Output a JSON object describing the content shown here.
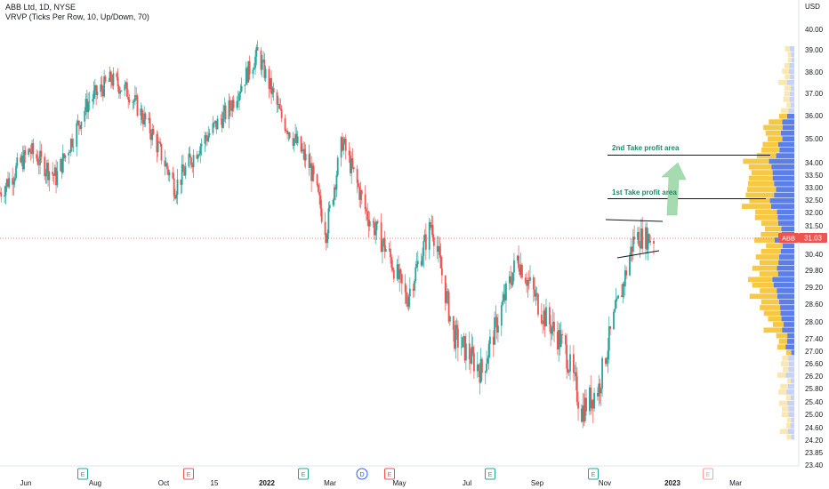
{
  "header": {
    "symbol_line": "ABB Ltd, 1D, NYSE",
    "indicator_line": "VRVP (Ticks Per Row, 10, Up/Down, 70)",
    "currency": "USD"
  },
  "price_scale": {
    "ticks": [
      "40.00",
      "39.00",
      "38.00",
      "37.00",
      "36.00",
      "35.00",
      "34.00",
      "33.50",
      "33.00",
      "32.50",
      "32.00",
      "31.50",
      "30.40",
      "29.80",
      "29.20",
      "28.60",
      "28.00",
      "27.40",
      "27.00",
      "26.60",
      "26.20",
      "25.80",
      "25.40",
      "25.00",
      "24.60",
      "24.20",
      "23.85",
      "23.40"
    ],
    "last_price_label": "31.03",
    "ticker_badge": "ABB"
  },
  "time_scale": {
    "ticks": [
      "Jun",
      "Aug",
      "Oct",
      "15",
      "2022",
      "Mar",
      "May",
      "Jul",
      "Sep",
      "Nov",
      "2023",
      "Mar"
    ]
  },
  "events": [
    {
      "label": "E",
      "kind": "earnings"
    },
    {
      "label": "E",
      "kind": "earnings"
    },
    {
      "label": "E",
      "kind": "earnings"
    },
    {
      "label": "D",
      "kind": "dividend"
    },
    {
      "label": "E",
      "kind": "earnings"
    },
    {
      "label": "E",
      "kind": "earnings"
    },
    {
      "label": "E",
      "kind": "earnings"
    },
    {
      "label": "E",
      "kind": "earnings"
    }
  ],
  "annotations": {
    "tp2_label": "2nd Take profit area",
    "tp1_label": "1st Take profit area"
  },
  "colors": {
    "up": "#26a69a",
    "down": "#ef5350",
    "vp_up": "#5b7fe6",
    "vp_down": "#f7c843",
    "vp_up_faded": "#c7d3f5",
    "vp_down_faded": "#fbe7b0",
    "arrow": "#90d0a0",
    "text_green": "#1e8a66",
    "price_badge": "#ef5350"
  },
  "chart_data": {
    "type": "candlestick",
    "ylim": [
      23.4,
      40.0
    ],
    "price_scale_type": "log",
    "last_price": 31.03,
    "take_profit_levels": [
      32.6,
      34.3
    ],
    "pattern": "rising wedge / flag (Nov 2022)",
    "series_path_close": [
      {
        "date": "2021-05-20",
        "close": 32.8
      },
      {
        "date": "2021-06-15",
        "close": 34.5
      },
      {
        "date": "2021-07-08",
        "close": 33.4
      },
      {
        "date": "2021-08-05",
        "close": 36.6
      },
      {
        "date": "2021-08-25",
        "close": 37.6
      },
      {
        "date": "2021-09-10",
        "close": 37.0
      },
      {
        "date": "2021-09-30",
        "close": 35.2
      },
      {
        "date": "2021-10-20",
        "close": 33.0
      },
      {
        "date": "2021-11-10",
        "close": 34.7
      },
      {
        "date": "2021-12-05",
        "close": 36.2
      },
      {
        "date": "2021-12-31",
        "close": 38.8
      },
      {
        "date": "2022-01-20",
        "close": 36.0
      },
      {
        "date": "2022-02-15",
        "close": 33.8
      },
      {
        "date": "2022-03-01",
        "close": 31.3
      },
      {
        "date": "2022-03-15",
        "close": 34.9
      },
      {
        "date": "2022-04-05",
        "close": 32.0
      },
      {
        "date": "2022-04-25",
        "close": 30.4
      },
      {
        "date": "2022-05-10",
        "close": 28.8
      },
      {
        "date": "2022-06-01",
        "close": 31.6
      },
      {
        "date": "2022-06-20",
        "close": 27.6
      },
      {
        "date": "2022-07-15",
        "close": 26.4
      },
      {
        "date": "2022-08-01",
        "close": 28.5
      },
      {
        "date": "2022-08-15",
        "close": 30.3
      },
      {
        "date": "2022-09-05",
        "close": 28.4
      },
      {
        "date": "2022-09-25",
        "close": 27.2
      },
      {
        "date": "2022-10-10",
        "close": 25.2
      },
      {
        "date": "2022-10-25",
        "close": 25.9
      },
      {
        "date": "2022-11-05",
        "close": 27.8
      },
      {
        "date": "2022-11-15",
        "close": 29.3
      },
      {
        "date": "2022-11-25",
        "close": 31.1
      },
      {
        "date": "2022-12-12",
        "close": 31.03
      }
    ]
  }
}
